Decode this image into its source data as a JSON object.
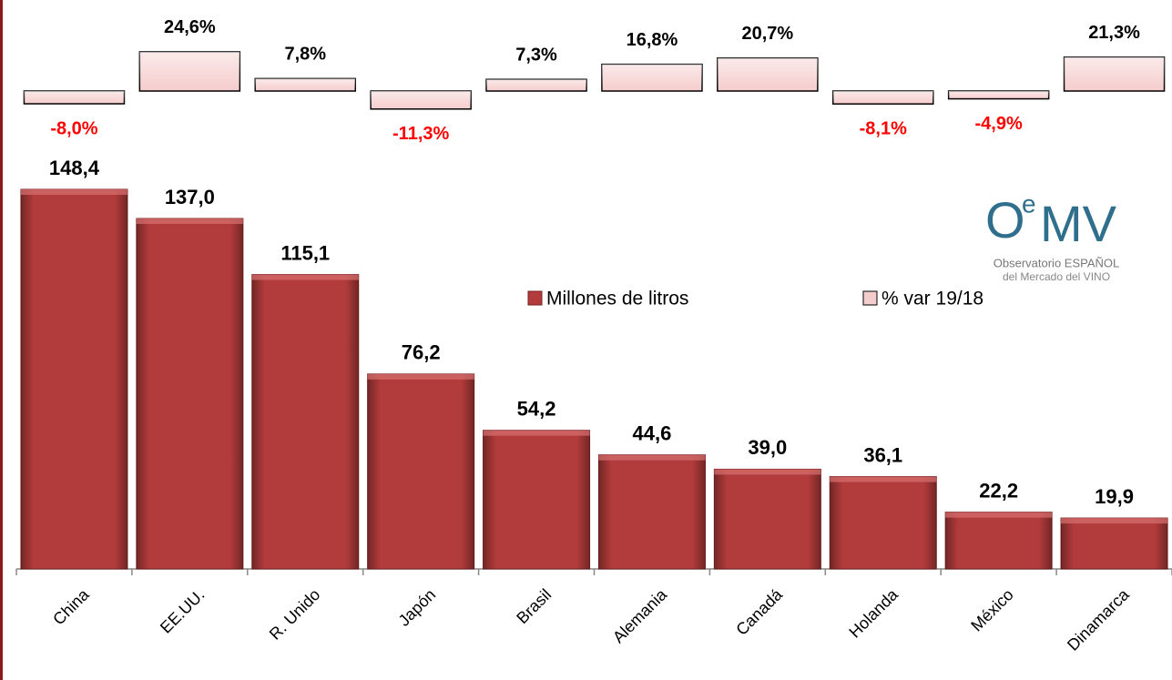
{
  "chart_data": {
    "type": "bar",
    "categories": [
      "China",
      "EE.UU.",
      "R. Unido",
      "Japón",
      "Brasil",
      "Alemania",
      "Canadá",
      "Holanda",
      "México",
      "Dinamarca"
    ],
    "series": [
      {
        "name": "Millones de litros",
        "color": "#b23b3b",
        "values": [
          148.4,
          137.0,
          115.1,
          76.2,
          54.2,
          44.6,
          39.0,
          36.1,
          22.2,
          19.9
        ],
        "value_labels": [
          "148,4",
          "137,0",
          "115,1",
          "76,2",
          "54,2",
          "44,6",
          "39,0",
          "36,1",
          "22,2",
          "19,9"
        ]
      },
      {
        "name": "% var 19/18",
        "color": "#f5cccc",
        "values": [
          -8.0,
          24.6,
          7.8,
          -11.3,
          7.3,
          16.8,
          20.7,
          -8.1,
          -4.9,
          21.3
        ],
        "value_labels": [
          "-8,0%",
          "24,6%",
          "7,8%",
          "-11,3%",
          "7,3%",
          "16,8%",
          "20,7%",
          "-8,1%",
          "-4,9%",
          "21,3%"
        ]
      }
    ]
  },
  "logo": {
    "o": "O",
    "e": "e",
    "mv": "MV",
    "line1": "Observatorio ESPAÑOL",
    "line2": "del Mercado del VINO"
  }
}
